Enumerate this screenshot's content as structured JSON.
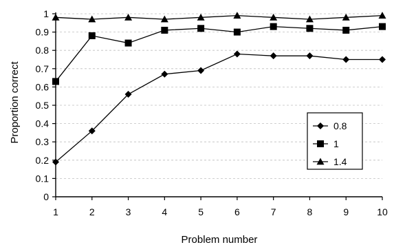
{
  "chart_data": {
    "type": "line",
    "title": "",
    "xlabel": "Problem number",
    "ylabel": "Proportion correct",
    "x": [
      1,
      2,
      3,
      4,
      5,
      6,
      7,
      8,
      9,
      10
    ],
    "xlim": [
      1,
      10
    ],
    "ylim": [
      0,
      1
    ],
    "yticks": [
      0,
      0.1,
      0.2,
      0.3,
      0.4,
      0.5,
      0.6,
      0.7,
      0.8,
      0.9,
      1
    ],
    "ytick_labels": [
      "0",
      "0.1",
      "0.2",
      "0.3",
      "0.4",
      "0.5",
      "0.6",
      "0.7",
      "0.8",
      "0.9",
      "1"
    ],
    "xtick_labels": [
      "1",
      "2",
      "3",
      "4",
      "5",
      "6",
      "7",
      "8",
      "9",
      "10"
    ],
    "grid": true,
    "legend": "right",
    "series": [
      {
        "name": "0.8",
        "marker": "diamond",
        "values": [
          0.19,
          0.36,
          0.56,
          0.67,
          0.69,
          0.78,
          0.77,
          0.77,
          0.75,
          0.75
        ]
      },
      {
        "name": "1",
        "marker": "square",
        "values": [
          0.63,
          0.88,
          0.84,
          0.91,
          0.92,
          0.9,
          0.93,
          0.92,
          0.91,
          0.93
        ]
      },
      {
        "name": "1.4",
        "marker": "triangle",
        "values": [
          0.98,
          0.97,
          0.98,
          0.97,
          0.98,
          0.99,
          0.98,
          0.97,
          0.98,
          0.99
        ]
      }
    ],
    "colors": {
      "line": "#000000",
      "grid": "#bdbdbd"
    }
  }
}
